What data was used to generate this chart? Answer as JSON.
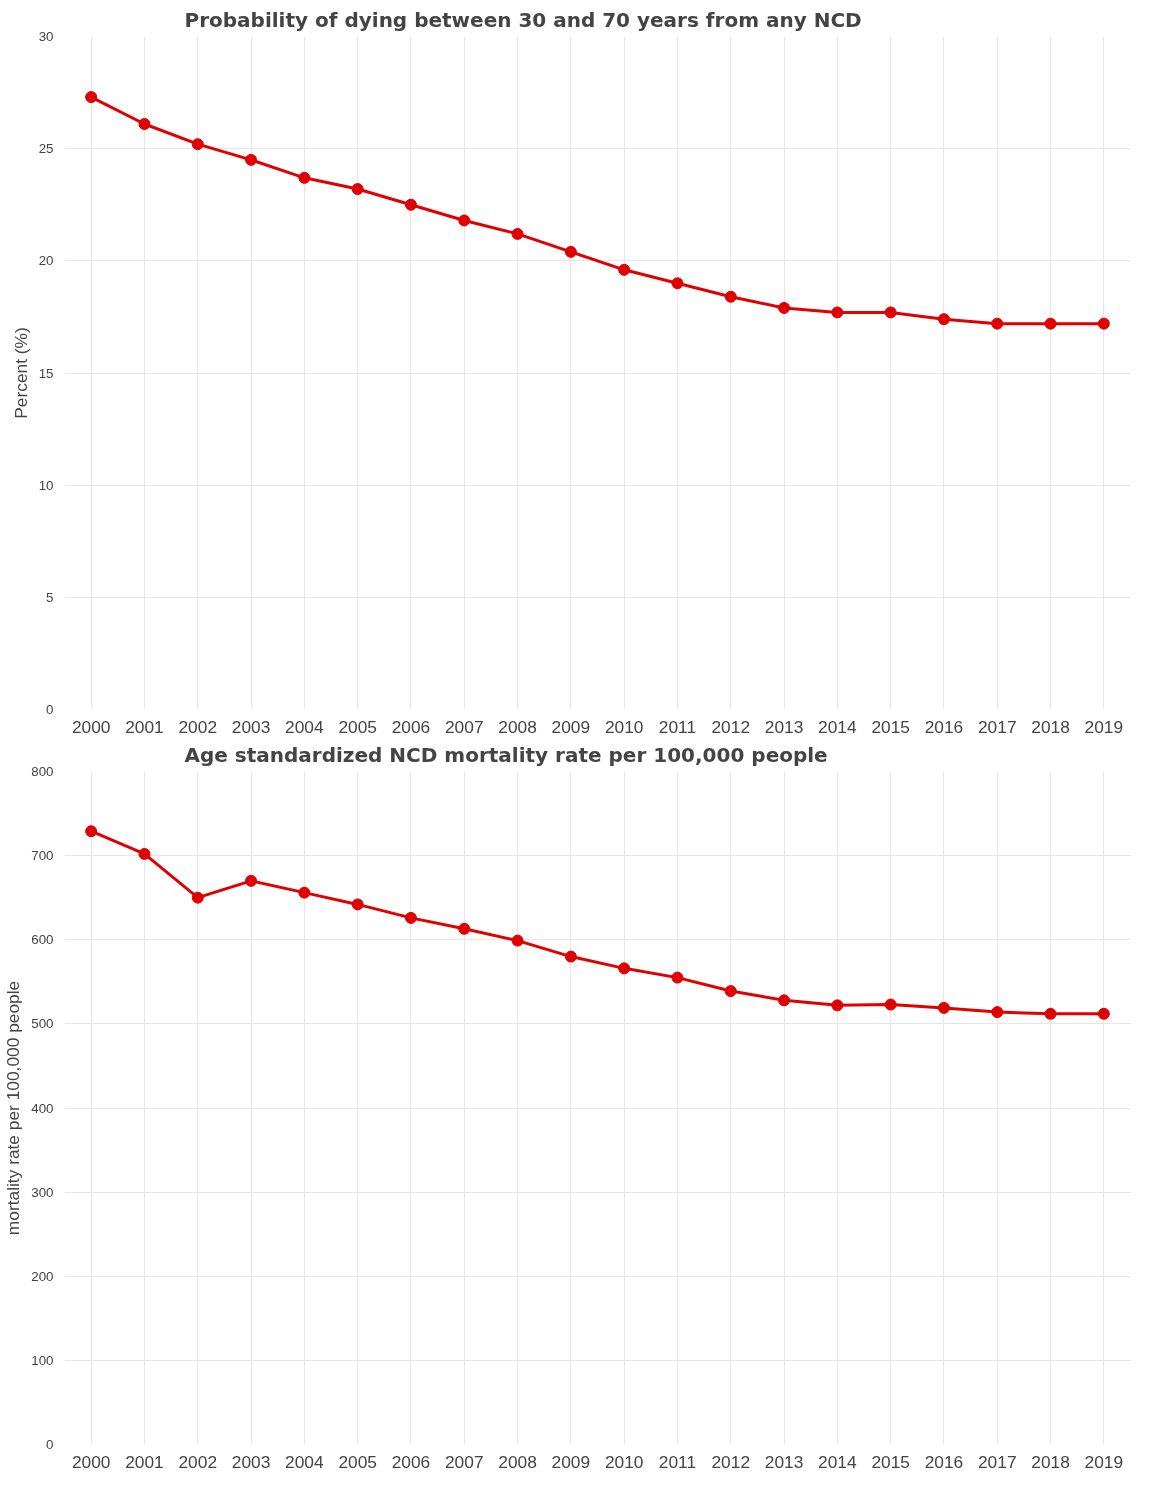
{
  "chart_data": [
    {
      "type": "line",
      "title": "Probability of dying between 30 and 70 years from any NCD",
      "ylabel": "Percent (%)",
      "categories": [
        "2000",
        "2001",
        "2002",
        "2003",
        "2004",
        "2005",
        "2006",
        "2007",
        "2008",
        "2009",
        "2010",
        "2011",
        "2012",
        "2013",
        "2014",
        "2015",
        "2016",
        "2017",
        "2018",
        "2019"
      ],
      "series": [
        {
          "color": "#e00000",
          "values": [
            27.3,
            26.1,
            25.2,
            24.5,
            23.7,
            23.2,
            22.5,
            21.8,
            21.2,
            20.4,
            19.6,
            19.0,
            18.4,
            17.9,
            17.7,
            17.7,
            17.4,
            17.2,
            17.2,
            17.2
          ]
        }
      ],
      "ylim": [
        0,
        30
      ],
      "yticks": [
        0,
        5,
        10,
        15,
        20,
        25,
        30
      ],
      "grid": true,
      "marker": "circle",
      "line_style": "solid"
    },
    {
      "type": "line",
      "title": "Age standardized NCD mortality rate per 100,000 people",
      "ylabel": "mortality rate per 100,000 people",
      "categories": [
        "2000",
        "2001",
        "2002",
        "2003",
        "2004",
        "2005",
        "2006",
        "2007",
        "2008",
        "2009",
        "2010",
        "2011",
        "2012",
        "2013",
        "2014",
        "2015",
        "2016",
        "2017",
        "2018",
        "2019"
      ],
      "series": [
        {
          "color": "#e00000",
          "values": [
            729,
            702,
            650,
            670,
            656,
            642,
            626,
            613,
            599,
            580,
            566,
            555,
            539,
            528,
            522,
            523,
            519,
            514,
            512,
            512
          ]
        }
      ],
      "ylim": [
        0,
        800
      ],
      "yticks": [
        0,
        100,
        200,
        300,
        400,
        500,
        600,
        700,
        800
      ],
      "grid": true,
      "marker": "circle",
      "line_style": "solid"
    }
  ]
}
